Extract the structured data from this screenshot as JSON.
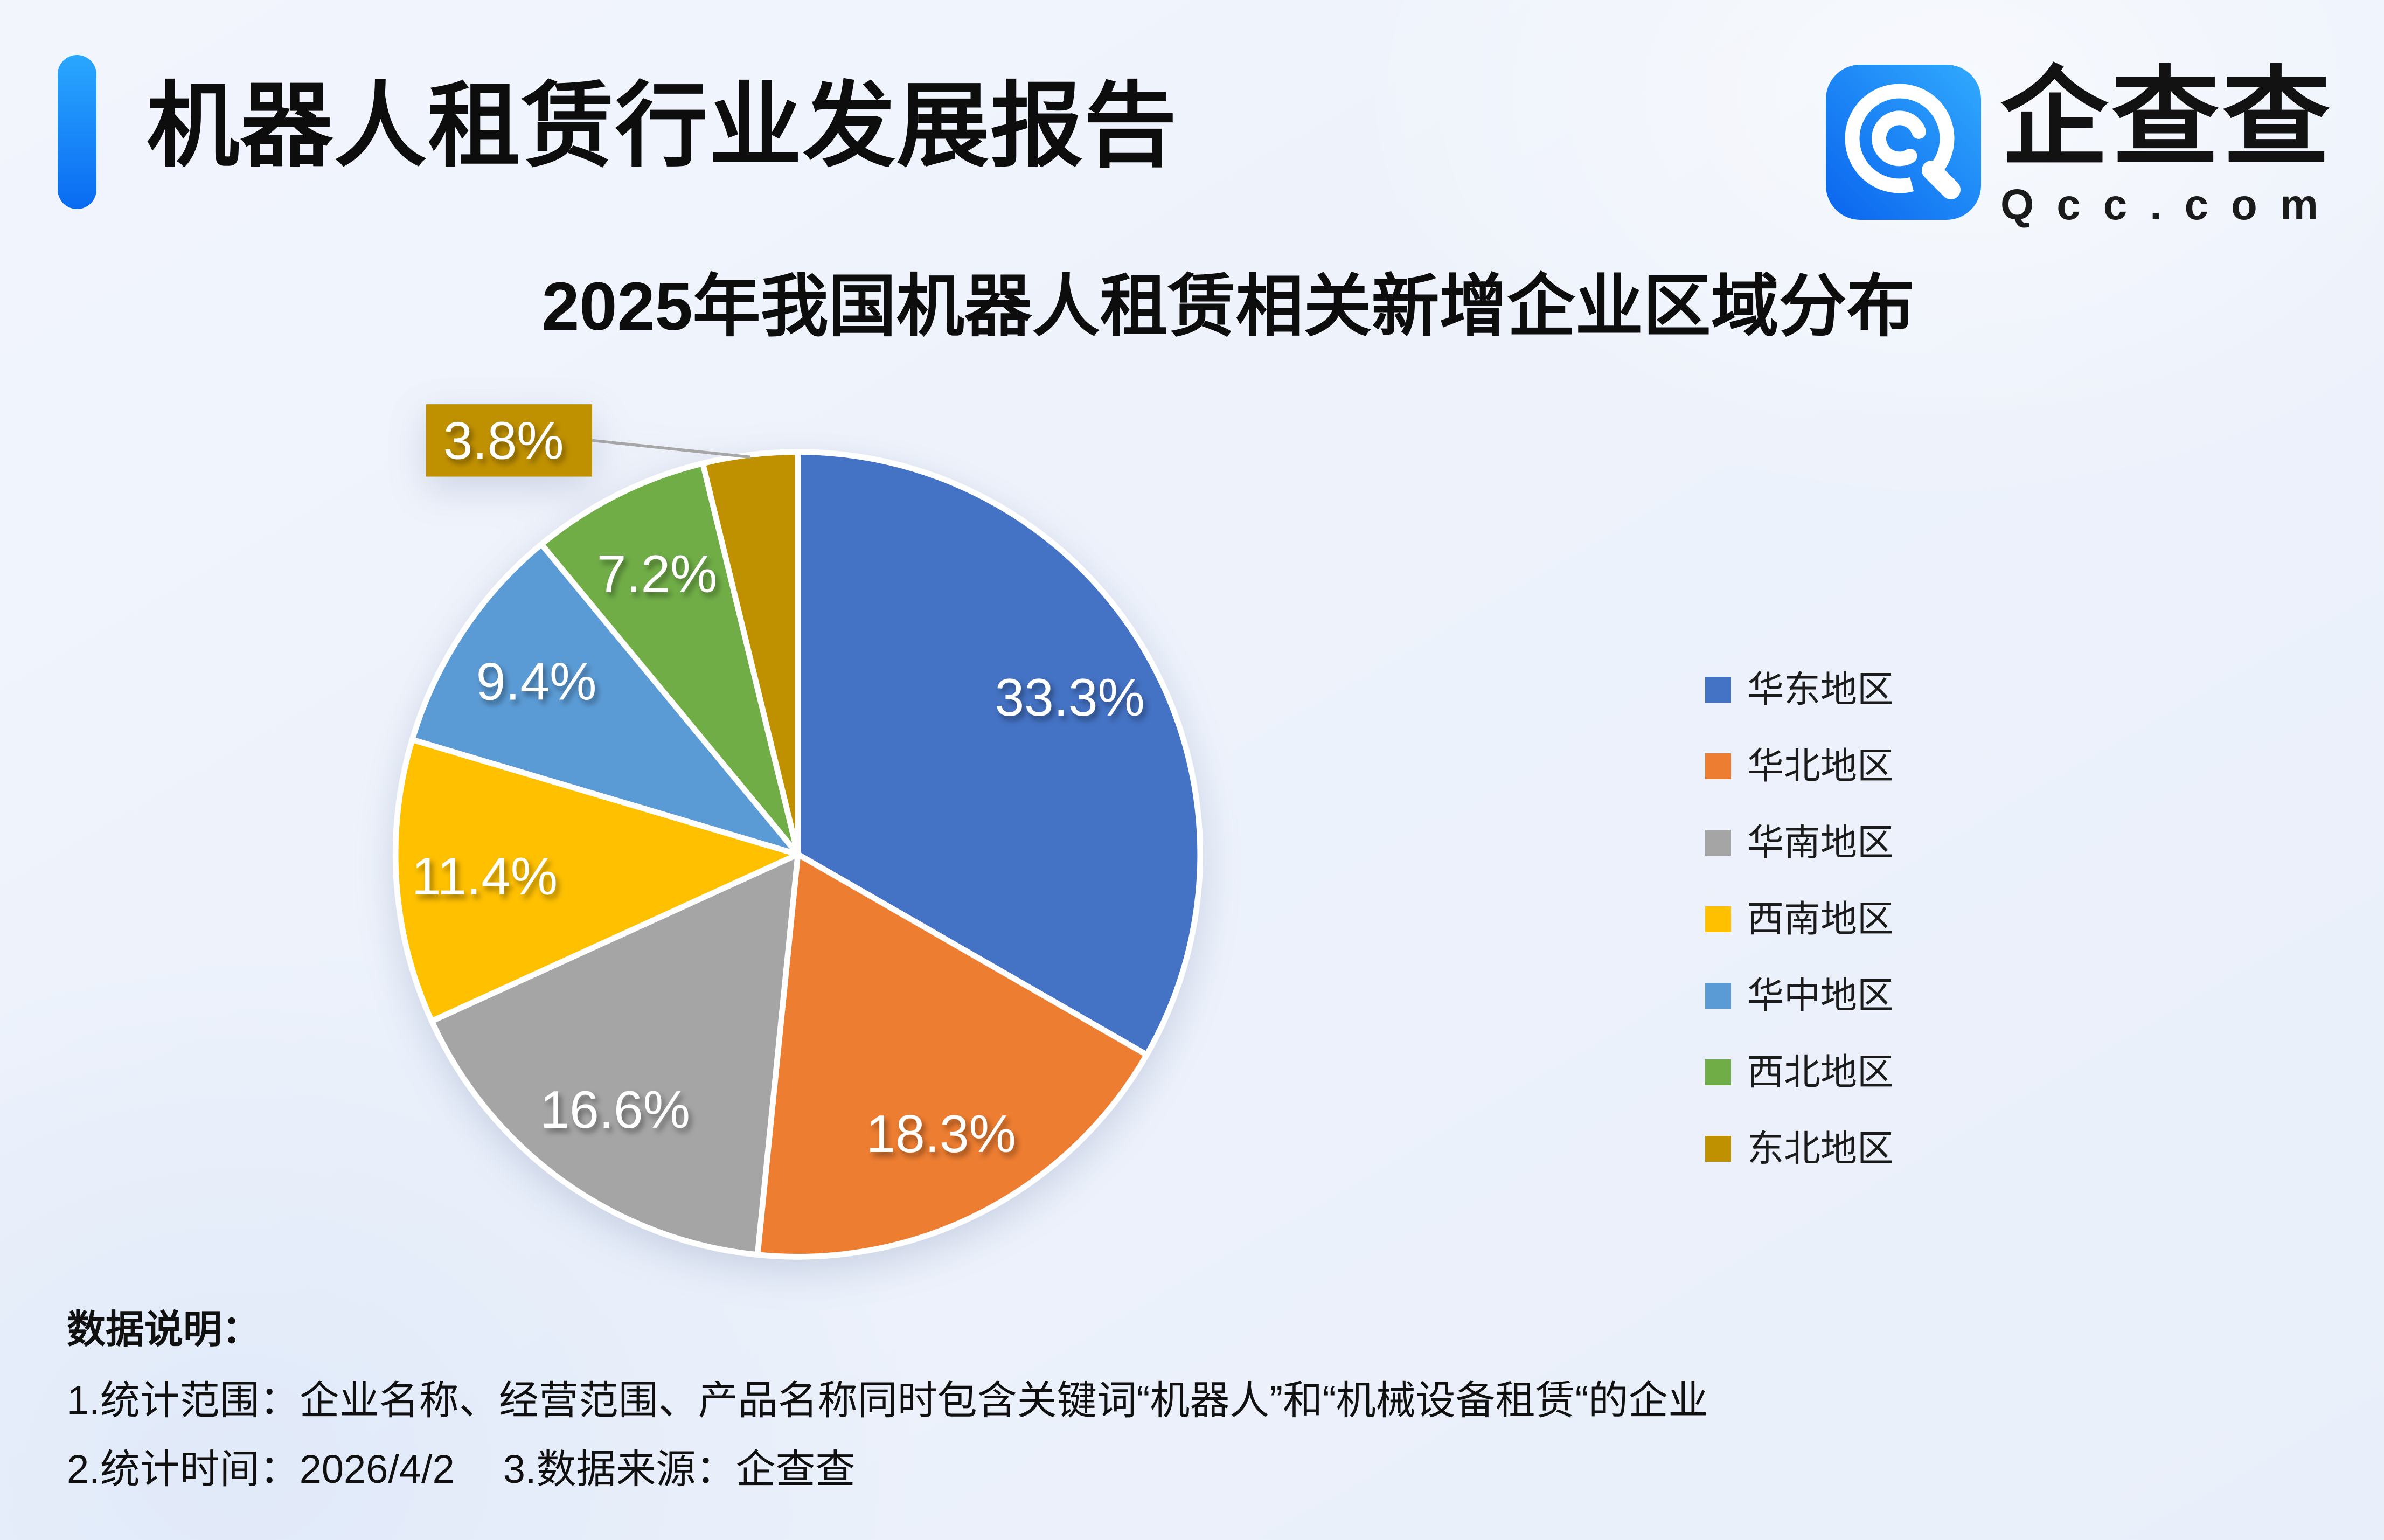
{
  "header": {
    "title": "机器人租赁行业发展报告"
  },
  "logo": {
    "name": "企查查",
    "domain": "Qcc.com"
  },
  "chart_data": {
    "type": "pie",
    "title": "2025年我国机器人租赁相关新增企业区域分布",
    "legend_position": "right",
    "label_format": "percent",
    "start_angle_deg": 0,
    "direction": "clockwise",
    "series": [
      {
        "name": "华东地区",
        "value": 33.3,
        "label": "33.3%",
        "color": "#4472C4"
      },
      {
        "name": "华北地区",
        "value": 18.3,
        "label": "18.3%",
        "color": "#ED7D31"
      },
      {
        "name": "华南地区",
        "value": 16.6,
        "label": "16.6%",
        "color": "#A5A5A5"
      },
      {
        "name": "西南地区",
        "value": 11.4,
        "label": "11.4%",
        "color": "#FFC000"
      },
      {
        "name": "华中地区",
        "value": 9.4,
        "label": "9.4%",
        "color": "#5B9BD5"
      },
      {
        "name": "西北地区",
        "value": 7.2,
        "label": "7.2%",
        "color": "#70AD47"
      },
      {
        "name": "东北地区",
        "value": 3.8,
        "label": "3.8%",
        "color": "#BF9000",
        "callout": true
      }
    ]
  },
  "notes": {
    "heading": "数据说明：",
    "line1": "1.统计范围：企业名称、经营范围、产品名称同时包含关键词“机器人”和“机械设备租赁“的企业",
    "line2a": "2.统计时间：2026/4/2",
    "line2b": "3.数据来源：企查查"
  },
  "colors": {
    "accent_bar_top": "#2AA7FF",
    "accent_bar_bottom": "#0A6BF2",
    "logo_blue_light": "#31AAFE",
    "logo_blue_dark": "#0A64EE",
    "leader_line": "#A6A6A6",
    "pie_border": "#FFFFFF",
    "label_text": "#FFFFFF",
    "text_primary": "#111111"
  }
}
